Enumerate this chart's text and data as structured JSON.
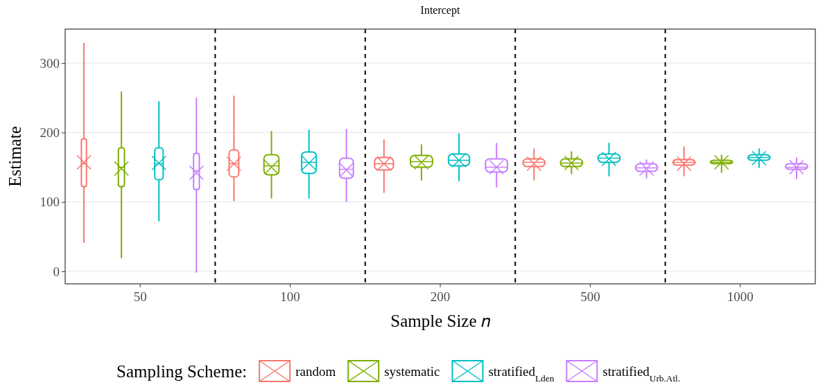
{
  "chart_data": {
    "type": "box",
    "title": "Intercept",
    "xlabel": "Sample Size 𝑛",
    "ylabel": "Estimate",
    "legend_title": "Sampling Scheme:",
    "categories": [
      "50",
      "100",
      "200",
      "500",
      "1000"
    ],
    "ylim": [
      -18,
      349
    ],
    "yticks": [
      0,
      100,
      200,
      300
    ],
    "grid": "y",
    "legend": "bottom",
    "marker": "cross",
    "series": [
      {
        "name": "random",
        "color": "#f8766d",
        "boxes": [
          {
            "low": 41,
            "q1": 122,
            "median": 155,
            "q3": 191,
            "high": 329,
            "mean": 157
          },
          {
            "low": 101,
            "q1": 136,
            "median": 155,
            "q3": 175,
            "high": 253,
            "mean": 155
          },
          {
            "low": 113,
            "q1": 146,
            "median": 155,
            "q3": 164,
            "high": 190,
            "mean": 155
          },
          {
            "low": 131,
            "q1": 151,
            "median": 157,
            "q3": 162,
            "high": 177,
            "mean": 155
          },
          {
            "low": 137,
            "q1": 153,
            "median": 157,
            "q3": 161,
            "high": 180,
            "mean": 155
          }
        ]
      },
      {
        "name": "systematic",
        "color": "#7cae00",
        "boxes": [
          {
            "low": 19,
            "q1": 122,
            "median": 150,
            "q3": 178,
            "high": 259,
            "mean": 148
          },
          {
            "low": 105,
            "q1": 139,
            "median": 152,
            "q3": 168,
            "high": 202,
            "mean": 150
          },
          {
            "low": 131,
            "q1": 150,
            "median": 158,
            "q3": 167,
            "high": 183,
            "mean": 157
          },
          {
            "low": 140,
            "q1": 151,
            "median": 156,
            "q3": 162,
            "high": 173,
            "mean": 156
          },
          {
            "low": 142,
            "q1": 155,
            "median": 157,
            "q3": 160,
            "high": 168,
            "mean": 157
          }
        ]
      },
      {
        "name": "stratified$_{Lden}$",
        "color": "#00bfc4",
        "boxes": [
          {
            "low": 72,
            "q1": 132,
            "median": 155,
            "q3": 178,
            "high": 245,
            "mean": 156
          },
          {
            "low": 105,
            "q1": 141,
            "median": 157,
            "q3": 172,
            "high": 204,
            "mean": 156
          },
          {
            "low": 130,
            "q1": 152,
            "median": 160,
            "q3": 169,
            "high": 199,
            "mean": 160
          },
          {
            "low": 137,
            "q1": 157,
            "median": 163,
            "q3": 169,
            "high": 185,
            "mean": 162
          },
          {
            "low": 149,
            "q1": 160,
            "median": 164,
            "q3": 168,
            "high": 177,
            "mean": 163
          }
        ]
      },
      {
        "name": "stratified$_{Urb.Atl.}$",
        "color": "#c77cff",
        "boxes": [
          {
            "low": -2,
            "q1": 118,
            "median": 145,
            "q3": 170,
            "high": 250,
            "mean": 142
          },
          {
            "low": 100,
            "q1": 134,
            "median": 147,
            "q3": 163,
            "high": 205,
            "mean": 146
          },
          {
            "low": 121,
            "q1": 143,
            "median": 150,
            "q3": 162,
            "high": 185,
            "mean": 150
          },
          {
            "low": 134,
            "q1": 144,
            "median": 149,
            "q3": 155,
            "high": 161,
            "mean": 148
          },
          {
            "low": 133,
            "q1": 147,
            "median": 150,
            "q3": 155,
            "high": 164,
            "mean": 150
          }
        ]
      }
    ]
  }
}
